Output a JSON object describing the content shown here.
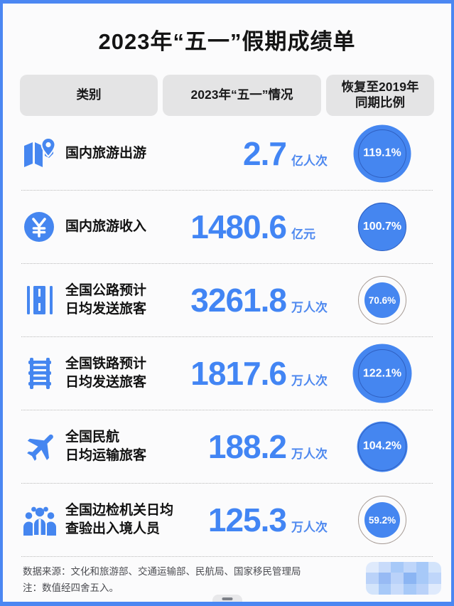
{
  "title": "2023年“五一”假期成绩单",
  "table": {
    "headers": [
      "类别",
      "2023年“五一”情况",
      "恢复至2019年\n同期比例"
    ]
  },
  "rows": [
    {
      "icon": "map-pin-icon",
      "label": "国内旅游出游",
      "value": "2.7",
      "unit": "亿人次",
      "recovery": "119.1%",
      "recovery_pct": 119.1
    },
    {
      "icon": "yuan-coin-icon",
      "label": "国内旅游收入",
      "value": "1480.6",
      "unit": "亿元",
      "recovery": "100.7%",
      "recovery_pct": 100.7
    },
    {
      "icon": "highway-icon",
      "label": "全国公路预计\n日均发送旅客",
      "value": "3261.8",
      "unit": "万人次",
      "recovery": "70.6%",
      "recovery_pct": 70.6
    },
    {
      "icon": "railway-icon",
      "label": "全国铁路预计\n日均发送旅客",
      "value": "1817.6",
      "unit": "万人次",
      "recovery": "122.1%",
      "recovery_pct": 122.1
    },
    {
      "icon": "airplane-icon",
      "label": "全国民航\n日均运输旅客",
      "value": "188.2",
      "unit": "万人次",
      "recovery": "104.2%",
      "recovery_pct": 104.2
    },
    {
      "icon": "people-group-icon",
      "label": "全国边检机关日均\n查验出入境人员",
      "value": "125.3",
      "unit": "万人次",
      "recovery": "59.2%",
      "recovery_pct": 59.2
    }
  ],
  "footer": {
    "source": "数据来源：文化和旅游部、交通运输部、民航局、国家移民管理局",
    "note": "注：数值经四舍五入。"
  },
  "colors": {
    "accent": "#4285f4",
    "frame_border": "#4b87f2",
    "circle_fill": "#4586f0",
    "ring_over_100": "#2f5fc0",
    "ring_under_100": "#a59a94",
    "header_pill_bg": "#e4e4e5"
  },
  "chart_data": {
    "type": "table",
    "title": "2023年“五一”假期成绩单",
    "columns": [
      "类别",
      "2023年“五一”情况",
      "恢复至2019年同期比例"
    ],
    "rows": [
      [
        "国内旅游出游",
        "2.7 亿人次",
        "119.1%"
      ],
      [
        "国内旅游收入",
        "1480.6 亿元",
        "100.7%"
      ],
      [
        "全国公路预计日均发送旅客",
        "3261.8 万人次",
        "70.6%"
      ],
      [
        "全国铁路预计日均发送旅客",
        "1817.6 万人次",
        "122.1%"
      ],
      [
        "全国民航日均运输旅客",
        "188.2 万人次",
        "104.2%"
      ],
      [
        "全国边检机关日均查验出入境人员",
        "125.3 万人次",
        "59.2%"
      ]
    ],
    "recovery_pct_values": [
      119.1,
      100.7,
      70.6,
      122.1,
      104.2,
      59.2
    ],
    "notes": "第三列圆形面积按恢复比例缩放，细环为100%参考线"
  }
}
